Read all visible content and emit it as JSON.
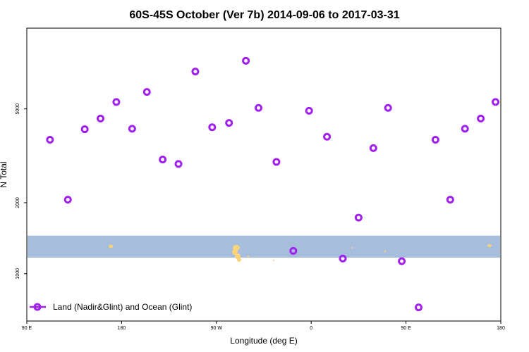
{
  "chart_data": {
    "type": "scatter",
    "title": "60S-45S October (Ver 7b)   2014-09-06 to 2017-03-31",
    "xlabel": "Longitude (deg E)",
    "ylabel": "N Total",
    "x_ticks": [
      {
        "value": 90,
        "label": "90 E"
      },
      {
        "value": 180,
        "label": "180"
      },
      {
        "value": 270,
        "label": "90 W"
      },
      {
        "value": 360,
        "label": "0"
      },
      {
        "value": 450,
        "label": "90 E"
      },
      {
        "value": 540,
        "label": "180"
      }
    ],
    "xlim": [
      90,
      540
    ],
    "y_scale": "log",
    "y_ticks": [
      1000,
      2000,
      5000
    ],
    "ylim": [
      630,
      11000
    ],
    "legend": {
      "position": "bottom-left",
      "label": "Land (Nadir&Glint) and Ocean (Glint)"
    },
    "marker_color": "#a020f0",
    "map_strip": {
      "ocean_color": "#a6bddb",
      "land_color": "#fdd37a",
      "y_range": [
        1170,
        1450
      ]
    },
    "series": [
      {
        "name": "Land (Nadir&Glint) and Ocean (Glint)",
        "x": [
          112,
          129,
          145,
          160,
          175,
          190,
          204,
          219,
          234,
          250,
          266,
          282,
          298,
          310,
          327,
          343,
          358,
          375,
          390,
          405,
          419,
          433,
          446,
          462,
          478,
          492,
          506,
          521,
          535
        ],
        "y": [
          3700,
          2060,
          4100,
          4550,
          5350,
          4120,
          5900,
          3050,
          2920,
          7200,
          4180,
          4360,
          8000,
          5050,
          2980,
          1250,
          4910,
          3810,
          1160,
          1730,
          3410,
          5050,
          1130,
          720,
          3700,
          2060,
          4120,
          4550,
          5350
        ]
      }
    ]
  }
}
